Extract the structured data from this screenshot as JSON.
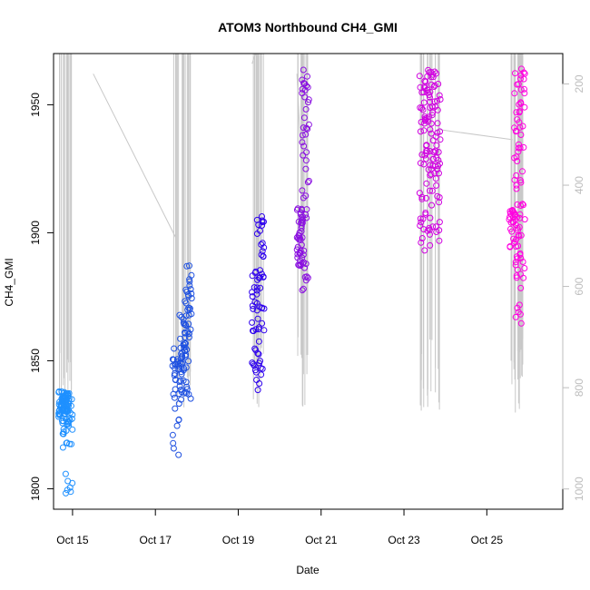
{
  "chart_data": {
    "type": "scatter",
    "title": "ATOM3 Northbound CH4_GMI",
    "xlabel": "Date",
    "ylabel": "CH4_GMI",
    "x_axis": {
      "unit": "days",
      "start_date": "2017-10-14",
      "range": [
        "2017-10-14 13:00",
        "2017-10-26 20:00"
      ],
      "ticks": [
        {
          "label": "Oct 15",
          "value": "2017-10-15"
        },
        {
          "label": "Oct 17",
          "value": "2017-10-17"
        },
        {
          "label": "Oct 19",
          "value": "2017-10-19"
        },
        {
          "label": "Oct 21",
          "value": "2017-10-21"
        },
        {
          "label": "Oct 23",
          "value": "2017-10-23"
        },
        {
          "label": "Oct 25",
          "value": "2017-10-25"
        }
      ]
    },
    "y_axis": {
      "range": [
        1792,
        1970
      ],
      "ticks": [
        1800,
        1850,
        1900,
        1950
      ]
    },
    "y2_axis": {
      "note": "secondary axis (pressure), reversed",
      "range": [
        1040,
        140
      ],
      "ticks": [
        200,
        400,
        600,
        800,
        1000
      ]
    },
    "series": [
      {
        "name": "",
        "color": "#1E90FF",
        "points": [
          {
            "x": "2017-10-14 18:00",
            "ymin": 1828,
            "ymax": 1838,
            "n": 40
          },
          {
            "x": "2017-10-14 20:00",
            "ymin": 1816,
            "ymax": 1838,
            "n": 40
          },
          {
            "x": "2017-10-14 22:00",
            "ymin": 1794,
            "ymax": 1837,
            "n": 30
          }
        ]
      },
      {
        "name": "",
        "color": "#1E50E0",
        "points": [
          {
            "x": "2017-10-17 12:00",
            "ymin": 1813,
            "ymax": 1855,
            "n": 30
          },
          {
            "x": "2017-10-17 16:00",
            "ymin": 1832,
            "ymax": 1868,
            "n": 40
          },
          {
            "x": "2017-10-17 19:00",
            "ymin": 1832,
            "ymax": 1888,
            "n": 40
          }
        ]
      },
      {
        "name": "",
        "color": "#2E00EE",
        "points": [
          {
            "x": "2017-10-19 10:00",
            "ymin": 1837,
            "ymax": 1885,
            "n": 30
          },
          {
            "x": "2017-10-19 13:00",
            "ymin": 1840,
            "ymax": 1909,
            "n": 40
          }
        ]
      },
      {
        "name": "",
        "color": "#8A10E0",
        "points": [
          {
            "x": "2017-10-20 12:00",
            "ymin": 1887,
            "ymax": 1910,
            "n": 45
          },
          {
            "x": "2017-10-20 15:00",
            "ymin": 1876,
            "ymax": 1965,
            "n": 45
          }
        ]
      },
      {
        "name": "",
        "color": "#D000E0",
        "points": [
          {
            "x": "2017-10-23 11:00",
            "ymin": 1893,
            "ymax": 1964,
            "n": 40
          },
          {
            "x": "2017-10-23 15:00",
            "ymin": 1895,
            "ymax": 1964,
            "n": 50
          },
          {
            "x": "2017-10-23 19:00",
            "ymin": 1888,
            "ymax": 1964,
            "n": 40
          }
        ]
      },
      {
        "name": "",
        "color": "#FF00E0",
        "points": [
          {
            "x": "2017-10-25 15:00",
            "ymin": 1894,
            "ymax": 1910,
            "n": 25
          },
          {
            "x": "2017-10-25 18:00",
            "ymin": 1863,
            "ymax": 1964,
            "n": 50
          },
          {
            "x": "2017-10-25 20:00",
            "ymin": 1874,
            "ymax": 1964,
            "n": 30
          }
        ]
      }
    ],
    "pressure_profile_color": "#c8c8c8",
    "grid": false,
    "legend": "none"
  }
}
